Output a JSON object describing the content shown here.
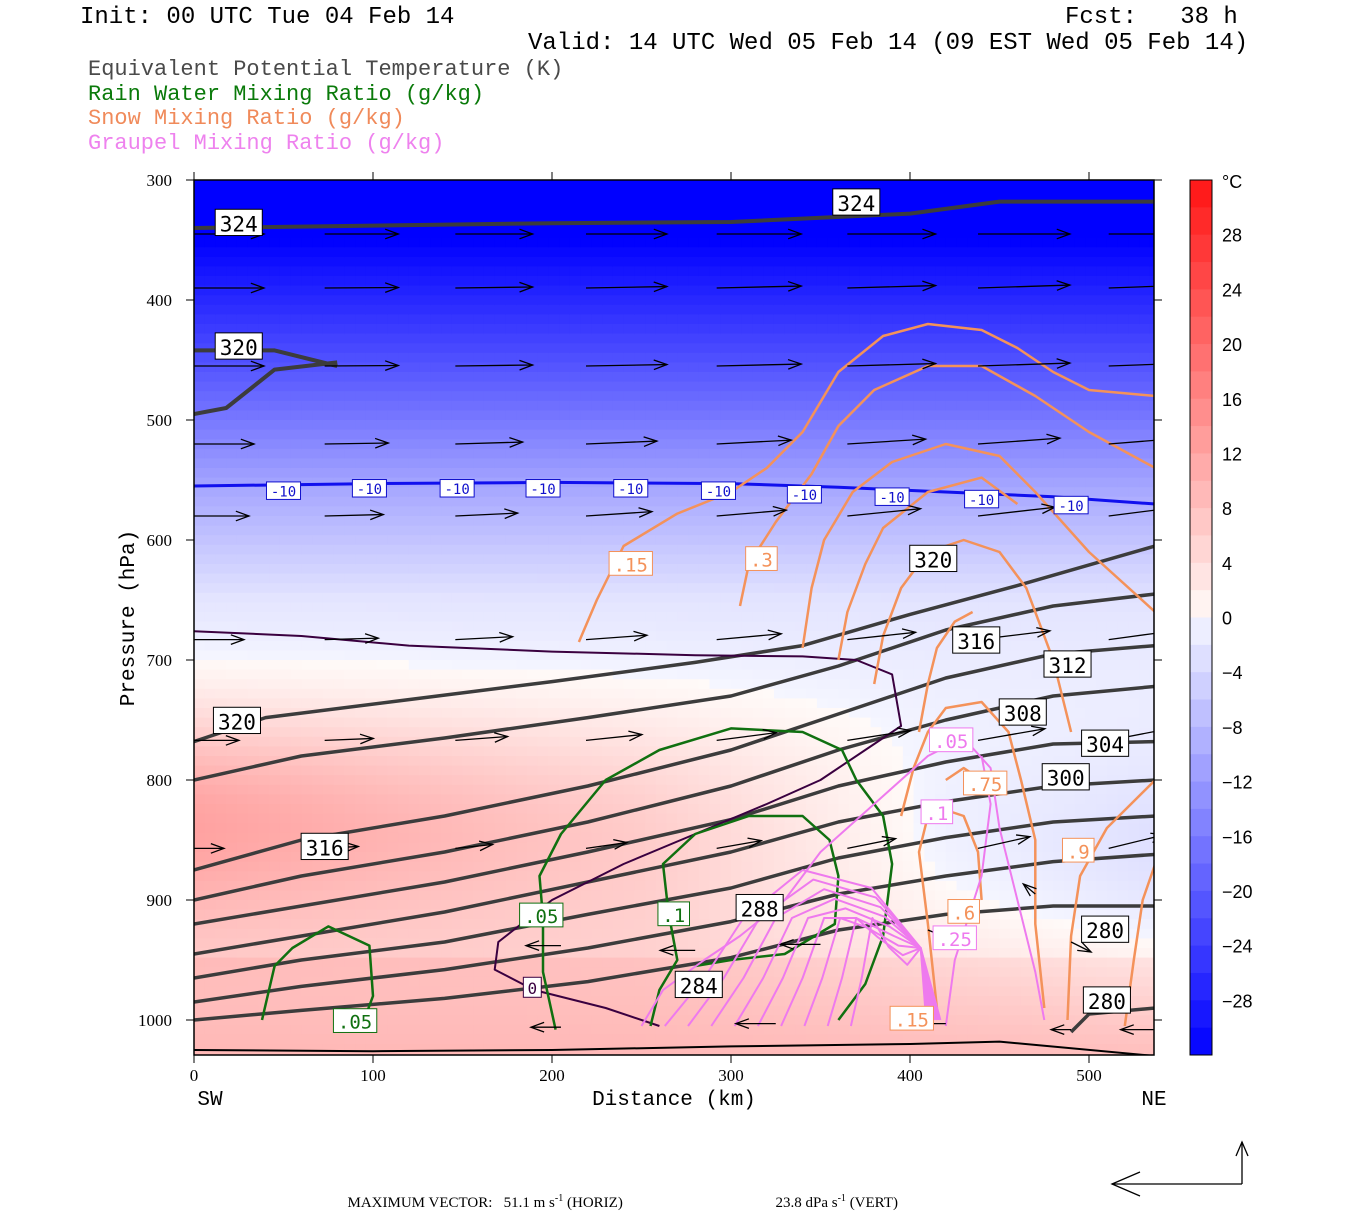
{
  "header": {
    "init": "Init: 00 UTC Tue 04 Feb 14",
    "fcst": "Fcst:   38 h",
    "valid": "Valid: 14 UTC Wed 05 Feb 14 (09 EST Wed 05 Feb 14)"
  },
  "legend": [
    {
      "label": "Equivalent Potential Temperature (K)",
      "color": "#4a4a4a"
    },
    {
      "label": "Rain Water Mixing Ratio (g/kg)",
      "color": "#0a7a0a"
    },
    {
      "label": "Snow Mixing Ratio (g/kg)",
      "color": "#f08a5a"
    },
    {
      "label": "Graupel Mixing Ratio (g/kg)",
      "color": "#ee82ee"
    }
  ],
  "footer": {
    "max_vector_label": "MAXIMUM VECTOR:",
    "horiz": "51.1 m s",
    "horiz_unit": "(HORIZ)",
    "vert": "23.8 dPa s",
    "vert_unit": "(VERT)",
    "exp": "-1"
  },
  "chart_data": {
    "type": "cross-section",
    "xlabel": "Distance (km)",
    "ylabel": "Pressure (hPa)",
    "x_left_label": "SW",
    "x_right_label": "NE",
    "xlim": [
      0,
      537
    ],
    "ylim": [
      1030,
      300
    ],
    "x_ticks": [
      0,
      100,
      200,
      300,
      400,
      500
    ],
    "y_ticks": [
      300,
      400,
      500,
      600,
      700,
      800,
      900,
      1000
    ],
    "colorbar": {
      "unit": "°C",
      "ticks": [
        28,
        24,
        20,
        16,
        12,
        8,
        4,
        0,
        -4,
        -8,
        -12,
        -16,
        -20,
        -24,
        -28
      ],
      "range": [
        -32,
        32
      ]
    },
    "theta_e_labels": [
      {
        "text": "324",
        "x": 25,
        "p": 337
      },
      {
        "text": "324",
        "x": 370,
        "p": 320
      },
      {
        "text": "320",
        "x": 25,
        "p": 440
      },
      {
        "text": "320",
        "x": 413,
        "p": 617
      },
      {
        "text": "316",
        "x": 437,
        "p": 685
      },
      {
        "text": "312",
        "x": 488,
        "p": 705
      },
      {
        "text": "308",
        "x": 463,
        "p": 745
      },
      {
        "text": "304",
        "x": 509,
        "p": 771
      },
      {
        "text": "300",
        "x": 487,
        "p": 799
      },
      {
        "text": "320",
        "x": 24,
        "p": 752
      },
      {
        "text": "316",
        "x": 73,
        "p": 857
      },
      {
        "text": "288",
        "x": 316,
        "p": 908
      },
      {
        "text": "284",
        "x": 282,
        "p": 972
      },
      {
        "text": "280",
        "x": 509,
        "p": 926
      },
      {
        "text": "280",
        "x": 510,
        "p": 985
      }
    ],
    "temperature_labels": [
      {
        "text": "-10",
        "x": 50,
        "p": 560
      },
      {
        "text": "-10",
        "x": 98,
        "p": 558
      },
      {
        "text": "-10",
        "x": 147,
        "p": 558
      },
      {
        "text": "-10",
        "x": 195,
        "p": 558
      },
      {
        "text": "-10",
        "x": 244,
        "p": 558
      },
      {
        "text": "-10",
        "x": 293,
        "p": 560
      },
      {
        "text": "-10",
        "x": 341,
        "p": 563
      },
      {
        "text": "-10",
        "x": 390,
        "p": 565
      },
      {
        "text": "-10",
        "x": 440,
        "p": 567
      },
      {
        "text": "-10",
        "x": 490,
        "p": 572
      }
    ],
    "rain_labels": [
      {
        "text": ".05",
        "x": 194,
        "p": 914
      },
      {
        "text": ".1",
        "x": 268,
        "p": 913
      },
      {
        "text": ".05",
        "x": 90,
        "p": 1002
      }
    ],
    "snow_labels": [
      {
        "text": ".15",
        "x": 244,
        "p": 621
      },
      {
        "text": ".3",
        "x": 317,
        "p": 617
      },
      {
        "text": ".75",
        "x": 442,
        "p": 804
      },
      {
        "text": ".9",
        "x": 494,
        "p": 860
      },
      {
        "text": ".6",
        "x": 430,
        "p": 911
      },
      {
        "text": ".15",
        "x": 401,
        "p": 1000
      }
    ],
    "graupel_labels": [
      {
        "text": ".05",
        "x": 423,
        "p": 768
      },
      {
        "text": ".1",
        "x": 415,
        "p": 828
      },
      {
        "text": ".25",
        "x": 425,
        "p": 933
      }
    ],
    "freezing_label": {
      "text": "0",
      "x": 189,
      "p": 974
    }
  }
}
